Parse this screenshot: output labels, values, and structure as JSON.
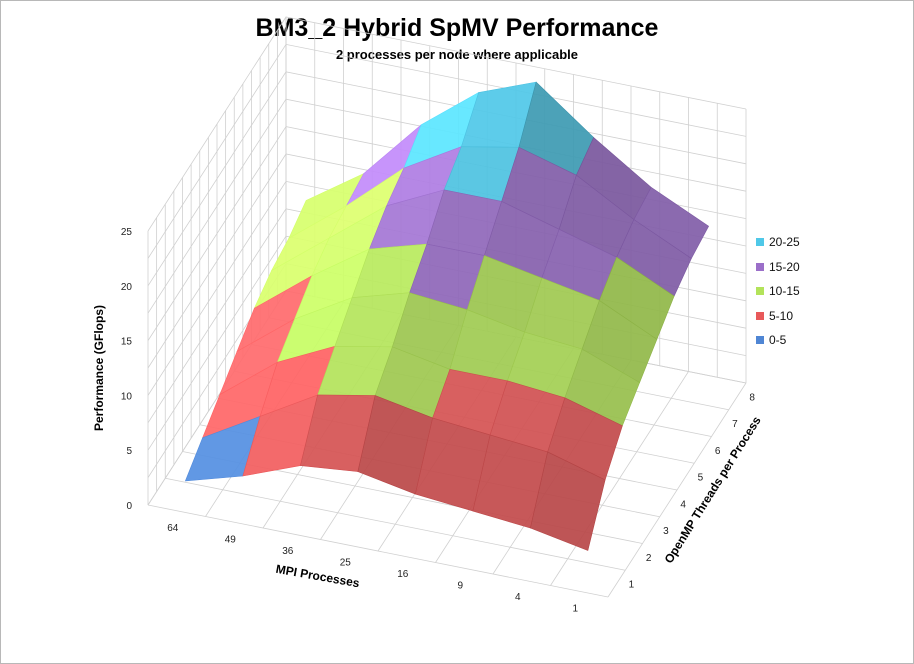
{
  "chart_data": {
    "type": "surface-3d",
    "title": "BM3_2 Hybrid SpMV Performance",
    "subtitle": "2 processes per node where applicable",
    "zlabel": "Performance (GFlops)",
    "xlabel": "MPI Processes",
    "ylabel": "OpenMP Threads per Process",
    "zlim": [
      0,
      25
    ],
    "z_ticks": [
      "0",
      "5",
      "10",
      "15",
      "20",
      "25"
    ],
    "mpi_ticks": [
      "64",
      "49",
      "36",
      "25",
      "16",
      "9",
      "4",
      "1"
    ],
    "omp_ticks": [
      "1",
      "2",
      "3",
      "4",
      "5",
      "6",
      "7",
      "8"
    ],
    "legend": [
      {
        "label": "20-25",
        "color": "#4fc8e8"
      },
      {
        "label": "15-20",
        "color": "#9b6fc9"
      },
      {
        "label": "10-15",
        "color": "#b3e35a"
      },
      {
        "label": "5-10",
        "color": "#e8595a"
      },
      {
        "label": "0-5",
        "color": "#4f86d4"
      }
    ],
    "values": [
      [
        1.5,
        3,
        4.5,
        6,
        7.5,
        8.5,
        9,
        10
      ],
      [
        3,
        6,
        8.5,
        10,
        11.5,
        12.5,
        13,
        13.5
      ],
      [
        5,
        9,
        11,
        13,
        15,
        16.5,
        17.5,
        19
      ],
      [
        5.5,
        10,
        12,
        14.5,
        16.5,
        19,
        20.5,
        23
      ],
      [
        4.5,
        9,
        11,
        14,
        16.5,
        19,
        21.5,
        25
      ],
      [
        4,
        8.5,
        11,
        13,
        15.5,
        17.5,
        20,
        21
      ],
      [
        3.5,
        8,
        10.5,
        12.5,
        14.5,
        16,
        17,
        17.5
      ],
      [
        2.5,
        6.5,
        9,
        10.5,
        12,
        13.5,
        14.5,
        15
      ]
    ]
  }
}
